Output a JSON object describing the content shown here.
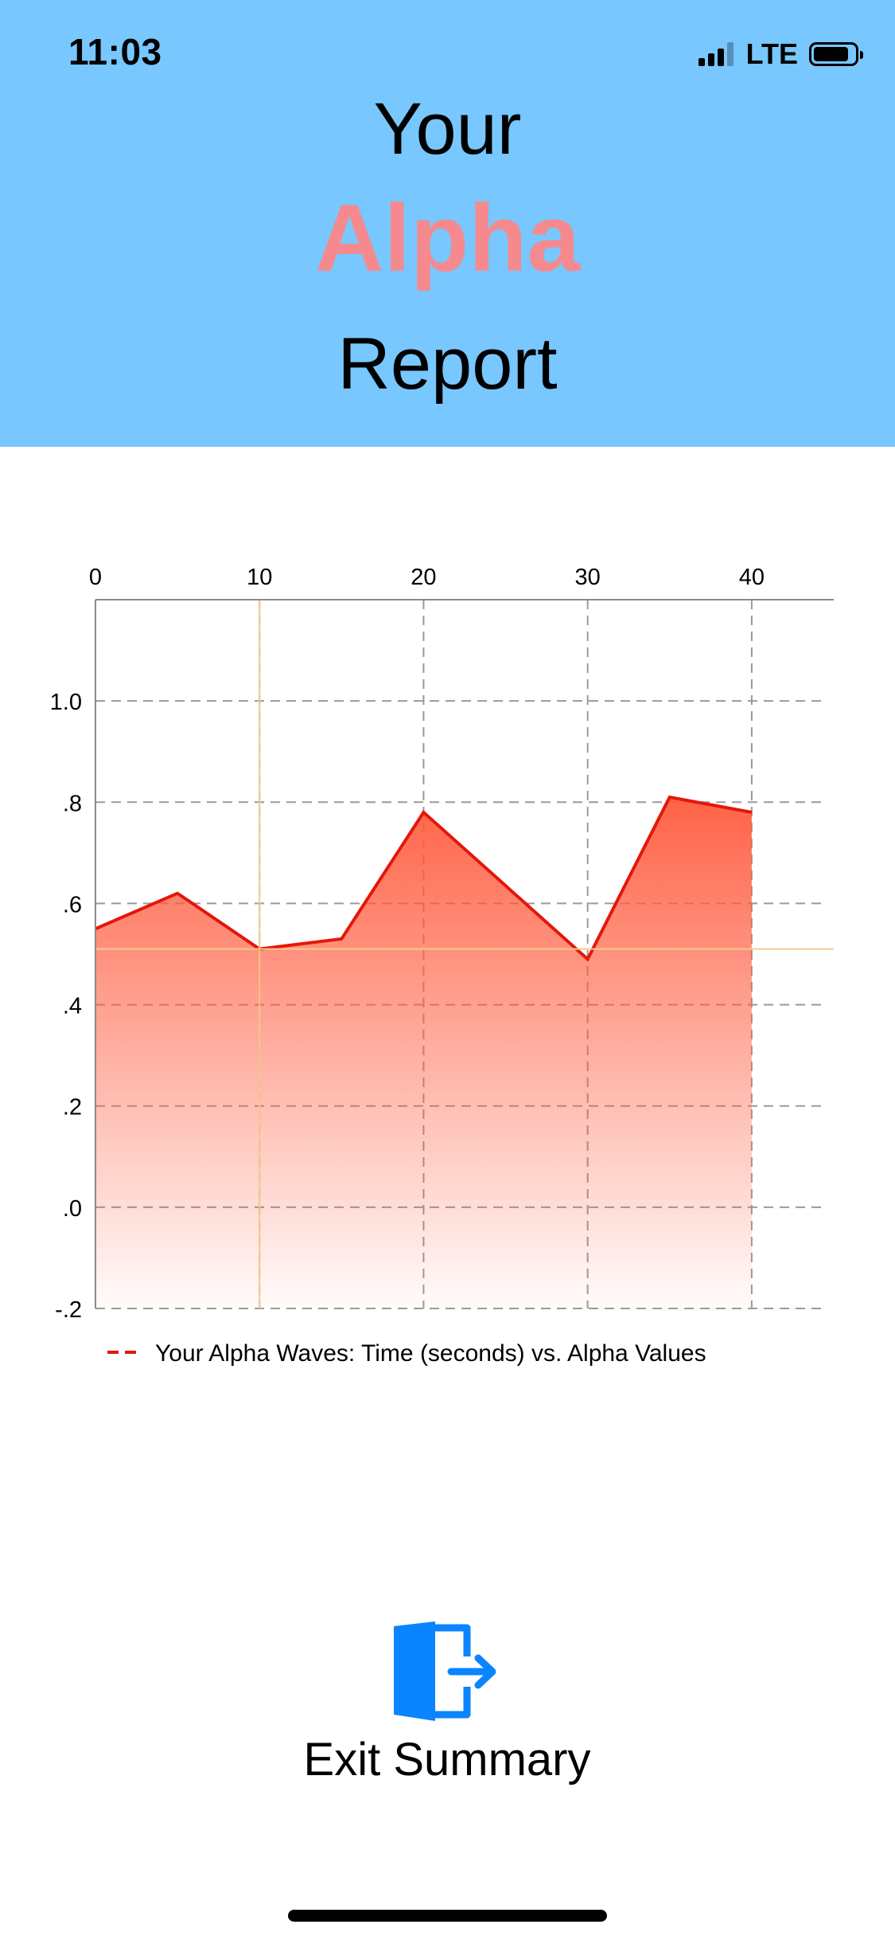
{
  "status_bar": {
    "time": "11:03",
    "network": "LTE",
    "signal_bars": 4,
    "signal_strength": 3,
    "battery_level": 0.85
  },
  "header": {
    "line1": "Your",
    "line2": "Alpha",
    "line3": "Report",
    "background_color": "#78c7fe",
    "accent_color": "#f58a8e"
  },
  "chart_data": {
    "type": "area",
    "x_ticks": [
      "0",
      "10",
      "20",
      "30",
      "40"
    ],
    "y_ticks": [
      "1.0",
      ".8",
      ".6",
      ".4",
      ".2",
      ".0",
      "-.2"
    ],
    "xlim": [
      0,
      45
    ],
    "ylim": [
      -0.2,
      1.2
    ],
    "x_axis_position": "top",
    "grid": true,
    "legend_position": "bottom-left",
    "series": [
      {
        "name": "Your Alpha Waves: Time (seconds) vs. Alpha Values",
        "color": "#e3170a",
        "x": [
          0,
          5,
          10,
          15,
          20,
          25,
          30,
          35,
          40
        ],
        "y": [
          0.55,
          0.62,
          0.51,
          0.53,
          0.78,
          0.635,
          0.49,
          0.81,
          0.78
        ]
      }
    ],
    "crosshair": {
      "x": 10,
      "y": 0.51,
      "color": "#f5c98a"
    }
  },
  "exit": {
    "label": "Exit Summary",
    "icon": "door-exit-icon",
    "icon_color": "#0a84ff"
  }
}
